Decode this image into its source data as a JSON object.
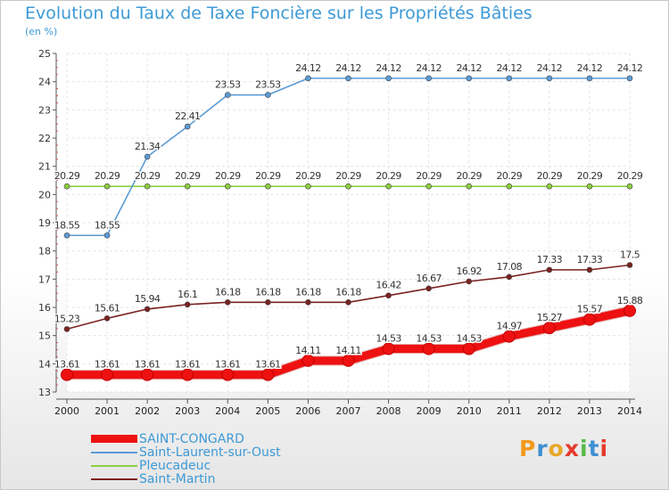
{
  "title": "Evolution du Taux de Taxe Foncière sur les Propriétés Bâties",
  "subtitle": "(en %)",
  "logo_text": "Proxiti",
  "chart_data": {
    "type": "line",
    "title": "Evolution du Taux de Taxe Foncière sur les Propriétés Bâties",
    "ylabel": "(en %)",
    "xlabel": "",
    "x": [
      "2000",
      "2001",
      "2002",
      "2003",
      "2004",
      "2005",
      "2006",
      "2007",
      "2008",
      "2009",
      "2010",
      "2011",
      "2012",
      "2013",
      "2014"
    ],
    "ylim": [
      13,
      25
    ],
    "yticks": [
      "13",
      "14",
      "15",
      "16",
      "17",
      "18",
      "19",
      "20",
      "21",
      "22",
      "23",
      "24",
      "25"
    ],
    "grid": true,
    "legend_position": "bottom-left",
    "series": [
      {
        "name": "SAINT-CONGARD",
        "color": "#ee1111",
        "values": [
          13.61,
          13.61,
          13.61,
          13.61,
          13.61,
          13.61,
          14.11,
          14.11,
          14.53,
          14.53,
          14.53,
          14.97,
          15.27,
          15.57,
          15.88
        ]
      },
      {
        "name": "Saint-Laurent-sur-Oust",
        "color": "#5b9bd5",
        "values": [
          18.55,
          18.55,
          21.34,
          22.41,
          23.53,
          23.53,
          24.12,
          24.12,
          24.12,
          24.12,
          24.12,
          24.12,
          24.12,
          24.12,
          24.12
        ]
      },
      {
        "name": "Pleucadeuc",
        "color": "#8ccf3f",
        "values": [
          20.29,
          20.29,
          20.29,
          20.29,
          20.29,
          20.29,
          20.29,
          20.29,
          20.29,
          20.29,
          20.29,
          20.29,
          20.29,
          20.29,
          20.29
        ]
      },
      {
        "name": "Saint-Martin",
        "color": "#7b2222",
        "values": [
          15.23,
          15.61,
          15.94,
          16.1,
          16.18,
          16.18,
          16.18,
          16.18,
          16.42,
          16.67,
          16.92,
          17.08,
          17.33,
          17.33,
          17.5
        ]
      }
    ],
    "data_labels": [
      [
        "13.61",
        "13.61",
        "13.61",
        "13.61",
        "13.61",
        "13.61",
        "14.11",
        "14.11",
        "14.53",
        "14.53",
        "14.53",
        "14.97",
        "15.27",
        "15.57",
        "15.88"
      ],
      [
        "18.55",
        "18.55",
        "21.34",
        "22.41",
        "23.53",
        "23.53",
        "24.12",
        "24.12",
        "24.12",
        "24.12",
        "24.12",
        "24.12",
        "24.12",
        "24.12",
        "24.12"
      ],
      [
        "20.29",
        "20.29",
        "20.29",
        "20.29",
        "20.29",
        "20.29",
        "20.29",
        "20.29",
        "20.29",
        "20.29",
        "20.29",
        "20.29",
        "20.29",
        "20.29",
        "20.29"
      ],
      [
        "15.23",
        "15.61",
        "15.94",
        "16.1",
        "16.18",
        "16.18",
        "16.18",
        "16.18",
        "16.42",
        "16.67",
        "16.92",
        "17.08",
        "17.33",
        "17.33",
        "17.5"
      ]
    ]
  }
}
